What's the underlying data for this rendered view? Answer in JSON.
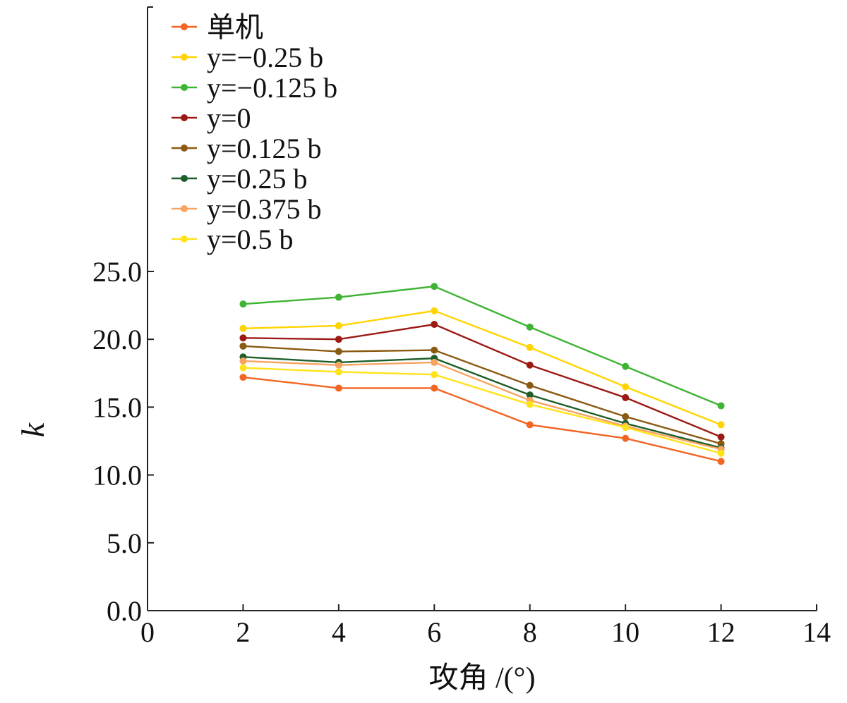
{
  "chart_data": {
    "type": "line",
    "xlabel": "攻角 /(°)",
    "ylabel": "k",
    "xlim": [
      0,
      14
    ],
    "ylim": [
      0,
      25
    ],
    "xticks": [
      0,
      2,
      4,
      6,
      8,
      10,
      12,
      14
    ],
    "yticks": [
      "0.0",
      "5.0",
      "10.0",
      "15.0",
      "20.0",
      "25.0"
    ],
    "x": [
      2,
      4,
      6,
      8,
      10,
      12
    ],
    "legend_position": "top-left",
    "series": [
      {
        "name": "单机",
        "color": "#f26522",
        "values": [
          17.2,
          16.4,
          16.4,
          13.7,
          12.7,
          11.0
        ]
      },
      {
        "name": "y=−0.25 b",
        "color": "#ffd400",
        "values": [
          20.8,
          21.0,
          22.1,
          19.4,
          16.5,
          13.7
        ]
      },
      {
        "name": "y=−0.125 b",
        "color": "#3fb434",
        "values": [
          22.6,
          23.1,
          23.9,
          20.9,
          18.0,
          15.1
        ]
      },
      {
        "name": "y=0",
        "color": "#9b1a14",
        "values": [
          20.1,
          20.0,
          21.1,
          18.1,
          15.7,
          12.8
        ]
      },
      {
        "name": "y=0.125 b",
        "color": "#8b5a12",
        "values": [
          19.5,
          19.1,
          19.2,
          16.6,
          14.3,
          12.3
        ]
      },
      {
        "name": "y=0.25 b",
        "color": "#1e5e2a",
        "values": [
          18.7,
          18.3,
          18.6,
          15.9,
          13.8,
          12.0
        ]
      },
      {
        "name": "y=0.375 b",
        "color": "#f7a361",
        "values": [
          18.4,
          18.1,
          18.3,
          15.5,
          13.6,
          11.9
        ]
      },
      {
        "name": "y=0.5 b",
        "color": "#ffe31a",
        "values": [
          17.9,
          17.6,
          17.4,
          15.2,
          13.5,
          11.6
        ]
      }
    ]
  }
}
